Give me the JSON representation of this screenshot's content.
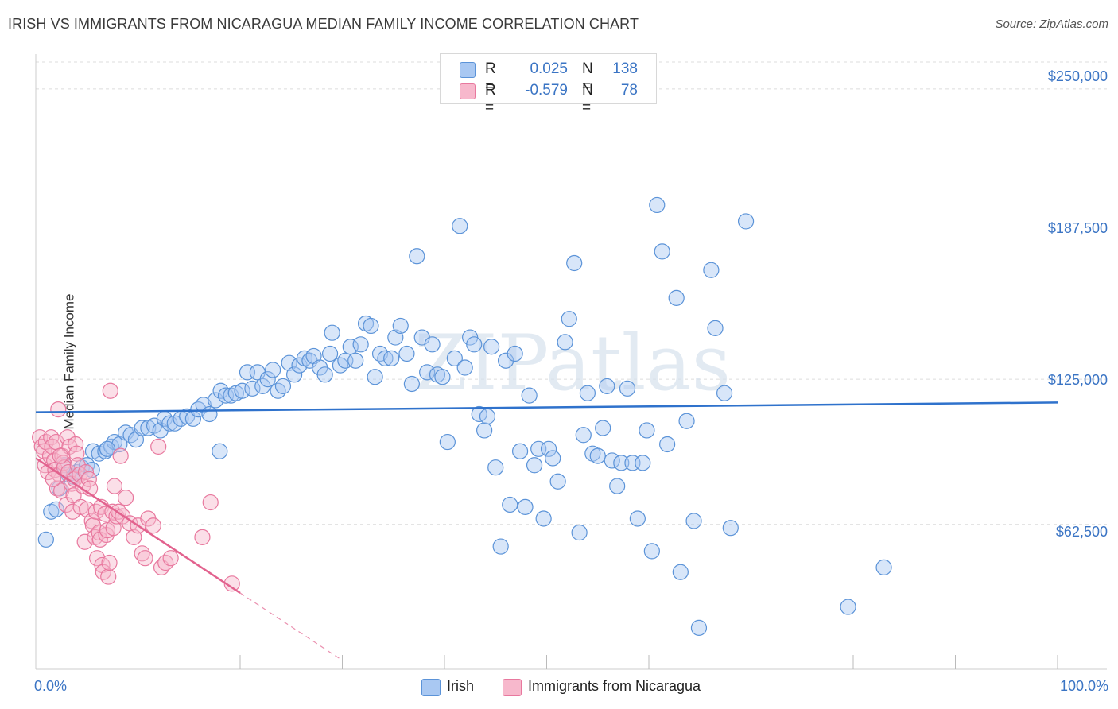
{
  "title": "IRISH VS IMMIGRANTS FROM NICARAGUA MEDIAN FAMILY INCOME CORRELATION CHART",
  "source": "Source: ZipAtlas.com",
  "watermark": "ZIPatlas",
  "stats": {
    "irish": {
      "r_label": "R =",
      "r_value": "0.025",
      "n_label": "N =",
      "n_value": "138"
    },
    "nicaragua": {
      "r_label": "R =",
      "r_value": "-0.579",
      "n_label": "N =",
      "n_value": "78"
    }
  },
  "legend": {
    "irish": "Irish",
    "nicaragua": "Immigrants from Nicaragua"
  },
  "colors": {
    "irish_fill": "#a9c8f2",
    "irish_stroke": "#5b93d8",
    "irish_line": "#2f72cc",
    "nic_fill": "#f7b8cc",
    "nic_stroke": "#e8789e",
    "nic_line": "#e2628e",
    "tick_text": "#3a74c4",
    "grid": "#dcdcdc"
  },
  "chart_data": {
    "type": "scatter",
    "title": "IRISH VS IMMIGRANTS FROM NICARAGUA MEDIAN FAMILY INCOME CORRELATION CHART",
    "xlabel": "",
    "ylabel": "Median Family Income",
    "xlim": [
      0,
      100
    ],
    "ylim": [
      7000,
      265000
    ],
    "x_tick_labels": [
      "0.0%",
      "100.0%"
    ],
    "y_ticks": [
      62500,
      125000,
      187500,
      250000
    ],
    "y_tick_labels": [
      "$62,500",
      "$125,000",
      "$187,500",
      "$250,000"
    ],
    "grid": true,
    "legend_position": "bottom-center",
    "series": [
      {
        "name": "Irish",
        "trend": {
          "x": [
            0,
            100
          ],
          "y": [
            110800,
            115000
          ]
        },
        "points": [
          [
            1.0,
            56000
          ],
          [
            1.5,
            68000
          ],
          [
            2.0,
            69000
          ],
          [
            2.3,
            78000
          ],
          [
            2.8,
            88000
          ],
          [
            3.2,
            84000
          ],
          [
            3.7,
            83000
          ],
          [
            4.0,
            85000
          ],
          [
            4.5,
            87000
          ],
          [
            5.0,
            88000
          ],
          [
            5.6,
            94000
          ],
          [
            6.2,
            93000
          ],
          [
            6.8,
            94000
          ],
          [
            7.4,
            96000
          ],
          [
            7.7,
            98000
          ],
          [
            8.2,
            97000
          ],
          [
            8.8,
            102000
          ],
          [
            9.3,
            101000
          ],
          [
            9.8,
            99000
          ],
          [
            10.4,
            104000
          ],
          [
            11.0,
            104000
          ],
          [
            11.6,
            105000
          ],
          [
            12.2,
            103000
          ],
          [
            12.6,
            108000
          ],
          [
            13.1,
            106000
          ],
          [
            13.6,
            106000
          ],
          [
            14.2,
            108000
          ],
          [
            14.8,
            109000
          ],
          [
            15.4,
            108000
          ],
          [
            15.9,
            112000
          ],
          [
            16.4,
            114000
          ],
          [
            17.0,
            110000
          ],
          [
            17.6,
            116000
          ],
          [
            18.1,
            120000
          ],
          [
            18.6,
            118000
          ],
          [
            19.1,
            118000
          ],
          [
            19.6,
            119000
          ],
          [
            20.2,
            120000
          ],
          [
            20.7,
            128000
          ],
          [
            21.2,
            121000
          ],
          [
            21.7,
            128000
          ],
          [
            22.2,
            122000
          ],
          [
            22.7,
            125000
          ],
          [
            23.2,
            129000
          ],
          [
            23.7,
            120000
          ],
          [
            24.2,
            122000
          ],
          [
            24.8,
            132000
          ],
          [
            25.3,
            127000
          ],
          [
            25.8,
            131000
          ],
          [
            26.3,
            134000
          ],
          [
            26.8,
            133000
          ],
          [
            27.2,
            135000
          ],
          [
            27.8,
            130000
          ],
          [
            28.3,
            127000
          ],
          [
            28.8,
            136000
          ],
          [
            29.0,
            145000
          ],
          [
            29.8,
            131000
          ],
          [
            30.3,
            133000
          ],
          [
            30.8,
            139000
          ],
          [
            31.3,
            133000
          ],
          [
            31.8,
            140000
          ],
          [
            32.3,
            149000
          ],
          [
            32.8,
            148000
          ],
          [
            33.2,
            126000
          ],
          [
            33.7,
            136000
          ],
          [
            34.2,
            134000
          ],
          [
            34.8,
            134000
          ],
          [
            35.2,
            143000
          ],
          [
            35.7,
            148000
          ],
          [
            36.3,
            136000
          ],
          [
            36.8,
            123000
          ],
          [
            37.3,
            178000
          ],
          [
            37.8,
            143000
          ],
          [
            38.3,
            128000
          ],
          [
            38.8,
            140000
          ],
          [
            39.3,
            127000
          ],
          [
            39.8,
            126000
          ],
          [
            40.3,
            98000
          ],
          [
            41.0,
            134000
          ],
          [
            41.5,
            191000
          ],
          [
            42.0,
            130000
          ],
          [
            42.5,
            143000
          ],
          [
            42.9,
            140000
          ],
          [
            43.4,
            110000
          ],
          [
            43.9,
            103000
          ],
          [
            44.2,
            109000
          ],
          [
            44.6,
            139000
          ],
          [
            45.0,
            87000
          ],
          [
            45.5,
            53000
          ],
          [
            46.0,
            133000
          ],
          [
            46.4,
            71000
          ],
          [
            46.9,
            136000
          ],
          [
            47.4,
            94000
          ],
          [
            47.9,
            70000
          ],
          [
            48.3,
            118000
          ],
          [
            48.8,
            88000
          ],
          [
            49.2,
            95000
          ],
          [
            49.7,
            65000
          ],
          [
            50.2,
            95000
          ],
          [
            50.6,
            91000
          ],
          [
            51.1,
            81000
          ],
          [
            51.8,
            141000
          ],
          [
            52.2,
            151000
          ],
          [
            52.7,
            175000
          ],
          [
            53.2,
            59000
          ],
          [
            53.6,
            101000
          ],
          [
            54.0,
            119000
          ],
          [
            54.5,
            93000
          ],
          [
            55.0,
            92000
          ],
          [
            55.5,
            104000
          ],
          [
            55.9,
            122000
          ],
          [
            56.4,
            90000
          ],
          [
            56.9,
            79000
          ],
          [
            57.3,
            89000
          ],
          [
            57.9,
            121000
          ],
          [
            58.4,
            89000
          ],
          [
            58.9,
            65000
          ],
          [
            59.4,
            89000
          ],
          [
            59.8,
            103000
          ],
          [
            60.3,
            51000
          ],
          [
            60.8,
            200000
          ],
          [
            61.3,
            180000
          ],
          [
            61.8,
            97000
          ],
          [
            62.7,
            160000
          ],
          [
            63.1,
            42000
          ],
          [
            63.7,
            107000
          ],
          [
            64.4,
            64000
          ],
          [
            64.9,
            18000
          ],
          [
            66.1,
            172000
          ],
          [
            66.5,
            147000
          ],
          [
            67.4,
            119000
          ],
          [
            68.0,
            61000
          ],
          [
            69.5,
            193000
          ],
          [
            79.5,
            27000
          ],
          [
            83.0,
            44000
          ],
          [
            18.0,
            94000
          ],
          [
            5.5,
            86000
          ],
          [
            7.0,
            95000
          ]
        ]
      },
      {
        "name": "Immigrants from Nicaragua",
        "trend": {
          "x": [
            0,
            20
          ],
          "y": [
            91000,
            33000
          ]
        },
        "trend_dashed": {
          "x": [
            20,
            30
          ],
          "y": [
            33000,
            4000
          ]
        },
        "points": [
          [
            0.4,
            100000
          ],
          [
            0.6,
            96000
          ],
          [
            0.8,
            94000
          ],
          [
            0.9,
            88000
          ],
          [
            1.0,
            98000
          ],
          [
            1.2,
            85000
          ],
          [
            1.4,
            92000
          ],
          [
            1.5,
            100000
          ],
          [
            1.6,
            96000
          ],
          [
            1.8,
            90000
          ],
          [
            1.9,
            86000
          ],
          [
            2.0,
            98000
          ],
          [
            2.1,
            78000
          ],
          [
            2.2,
            112000
          ],
          [
            2.3,
            84000
          ],
          [
            2.5,
            77000
          ],
          [
            2.6,
            92000
          ],
          [
            2.7,
            89000
          ],
          [
            2.8,
            87000
          ],
          [
            3.0,
            71000
          ],
          [
            3.1,
            100000
          ],
          [
            3.2,
            85000
          ],
          [
            3.3,
            96000
          ],
          [
            3.5,
            80000
          ],
          [
            3.6,
            68000
          ],
          [
            3.7,
            75000
          ],
          [
            3.8,
            82000
          ],
          [
            3.9,
            97000
          ],
          [
            4.0,
            93000
          ],
          [
            4.1,
            88000
          ],
          [
            4.3,
            84000
          ],
          [
            4.4,
            70000
          ],
          [
            4.6,
            79000
          ],
          [
            4.8,
            55000
          ],
          [
            4.9,
            85000
          ],
          [
            5.0,
            69000
          ],
          [
            5.2,
            82000
          ],
          [
            5.3,
            78000
          ],
          [
            5.5,
            64000
          ],
          [
            5.6,
            62000
          ],
          [
            5.8,
            57000
          ],
          [
            5.9,
            68000
          ],
          [
            6.0,
            48000
          ],
          [
            6.2,
            59000
          ],
          [
            6.3,
            56000
          ],
          [
            6.4,
            70000
          ],
          [
            6.5,
            45000
          ],
          [
            6.6,
            42000
          ],
          [
            6.8,
            67000
          ],
          [
            6.9,
            58000
          ],
          [
            7.0,
            60000
          ],
          [
            7.1,
            40000
          ],
          [
            7.2,
            46000
          ],
          [
            7.3,
            120000
          ],
          [
            7.5,
            68000
          ],
          [
            7.6,
            61000
          ],
          [
            7.7,
            79000
          ],
          [
            7.9,
            66000
          ],
          [
            8.1,
            68000
          ],
          [
            8.3,
            92000
          ],
          [
            8.5,
            66000
          ],
          [
            8.8,
            74000
          ],
          [
            9.2,
            63000
          ],
          [
            9.6,
            57000
          ],
          [
            10.0,
            62000
          ],
          [
            10.4,
            50000
          ],
          [
            10.7,
            48000
          ],
          [
            11.0,
            65000
          ],
          [
            11.5,
            62000
          ],
          [
            12.0,
            96000
          ],
          [
            12.3,
            44000
          ],
          [
            12.7,
            46000
          ],
          [
            13.2,
            48000
          ],
          [
            16.3,
            57000
          ],
          [
            17.1,
            72000
          ],
          [
            19.2,
            37000
          ],
          [
            1.7,
            82000
          ],
          [
            2.4,
            92000
          ]
        ]
      }
    ]
  }
}
